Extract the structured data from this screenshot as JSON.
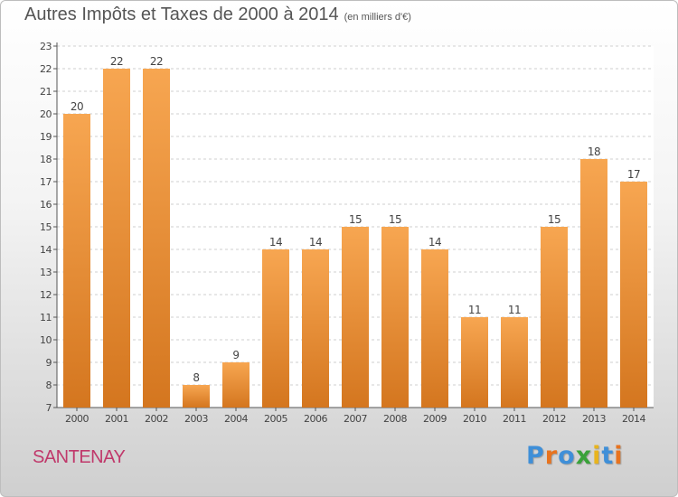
{
  "header": {
    "title": "Autres Impôts et Taxes de 2000 à 2014",
    "unit": "(en milliers d'€)"
  },
  "footer": {
    "place": "SANTENAY",
    "logo": "Proxiti",
    "logo_letters": [
      {
        "char": "P",
        "color": "#3f8fd8"
      },
      {
        "char": "r",
        "color": "#e8731e"
      },
      {
        "char": "o",
        "color": "#3f8fd8"
      },
      {
        "char": "x",
        "color": "#3aa23a"
      },
      {
        "char": "i",
        "color": "#e8b41e"
      },
      {
        "char": "t",
        "color": "#3f8fd8"
      },
      {
        "char": "i",
        "color": "#e8731e"
      }
    ]
  },
  "colors": {
    "bar_light": "#f7a651",
    "bar_dark": "#d4761f",
    "grid": "#cfcfcf",
    "text": "#444444",
    "place": "#c0396b"
  },
  "chart_data": {
    "type": "bar",
    "title": "Autres Impôts et Taxes de 2000 à 2014",
    "xlabel": "",
    "ylabel": "",
    "categories": [
      "2000",
      "2001",
      "2002",
      "2003",
      "2004",
      "2005",
      "2006",
      "2007",
      "2008",
      "2009",
      "2010",
      "2011",
      "2012",
      "2013",
      "2014"
    ],
    "values": [
      20,
      22,
      22,
      8,
      9,
      14,
      14,
      15,
      15,
      14,
      11,
      11,
      15,
      18,
      17
    ],
    "ylim": [
      7,
      23
    ],
    "yticks": [
      7,
      8,
      9,
      10,
      11,
      12,
      13,
      14,
      15,
      16,
      17,
      18,
      19,
      20,
      21,
      22,
      23
    ],
    "grid": true
  }
}
